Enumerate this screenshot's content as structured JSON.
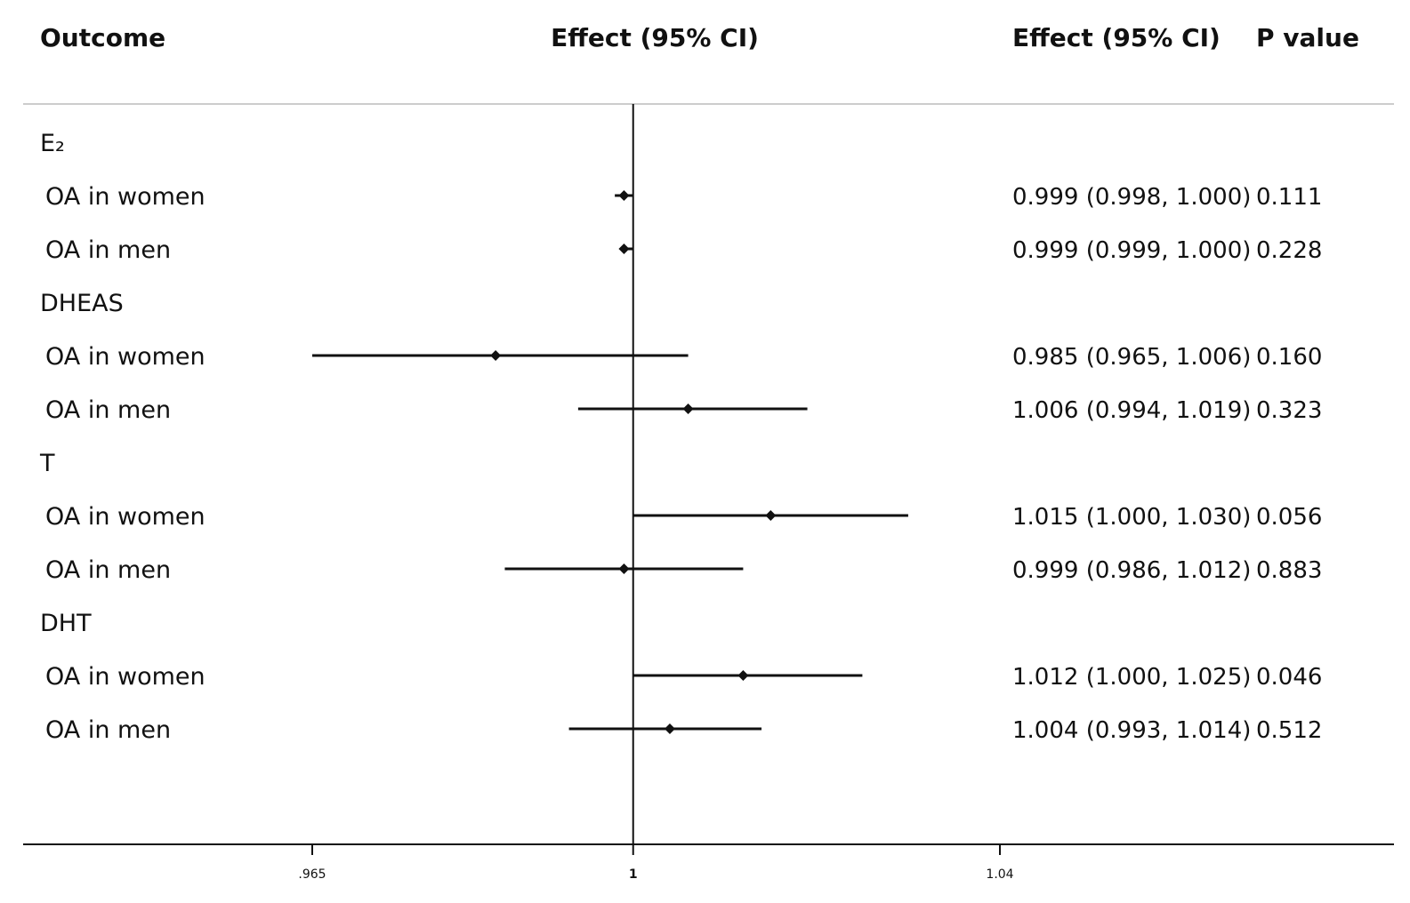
{
  "headers": {
    "outcome": "Outcome",
    "plot": "Effect (95% CI)",
    "effect": "Effect (95% CI)",
    "pvalue": "P value"
  },
  "chart_data": {
    "type": "forest",
    "x_axis": {
      "ticks": [
        0.965,
        1,
        1.04
      ],
      "tick_labels": [
        ".965",
        "1",
        "1.04"
      ],
      "reference": 1,
      "range": [
        0.96,
        1.0457
      ]
    },
    "rows": [
      {
        "kind": "group",
        "label": "E₂"
      },
      {
        "kind": "item",
        "label": "OA in women",
        "effect": 0.999,
        "lo": 0.998,
        "hi": 1.0,
        "effect_text": "0.999 (0.998, 1.000)",
        "p": "0.111"
      },
      {
        "kind": "item",
        "label": "OA in men",
        "effect": 0.999,
        "lo": 0.999,
        "hi": 1.0,
        "effect_text": "0.999 (0.999, 1.000)",
        "p": "0.228"
      },
      {
        "kind": "group",
        "label": "DHEAS"
      },
      {
        "kind": "item",
        "label": "OA in women",
        "effect": 0.985,
        "lo": 0.965,
        "hi": 1.006,
        "effect_text": "0.985 (0.965, 1.006)",
        "p": "0.160"
      },
      {
        "kind": "item",
        "label": "OA in men",
        "effect": 1.006,
        "lo": 0.994,
        "hi": 1.019,
        "effect_text": "1.006 (0.994, 1.019)",
        "p": "0.323"
      },
      {
        "kind": "group",
        "label": "T"
      },
      {
        "kind": "item",
        "label": "OA in women",
        "effect": 1.015,
        "lo": 1.0,
        "hi": 1.03,
        "effect_text": "1.015 (1.000, 1.030)",
        "p": "0.056"
      },
      {
        "kind": "item",
        "label": "OA in men",
        "effect": 0.999,
        "lo": 0.986,
        "hi": 1.012,
        "effect_text": "0.999 (0.986, 1.012)",
        "p": "0.883"
      },
      {
        "kind": "group",
        "label": "DHT"
      },
      {
        "kind": "item",
        "label": "OA in women",
        "effect": 1.012,
        "lo": 1.0,
        "hi": 1.025,
        "effect_text": "1.012 (1.000, 1.025)",
        "p": "0.046"
      },
      {
        "kind": "item",
        "label": "OA in men",
        "effect": 1.004,
        "lo": 0.993,
        "hi": 1.014,
        "effect_text": "1.004 (0.993, 1.014)",
        "p": "0.512"
      }
    ]
  }
}
